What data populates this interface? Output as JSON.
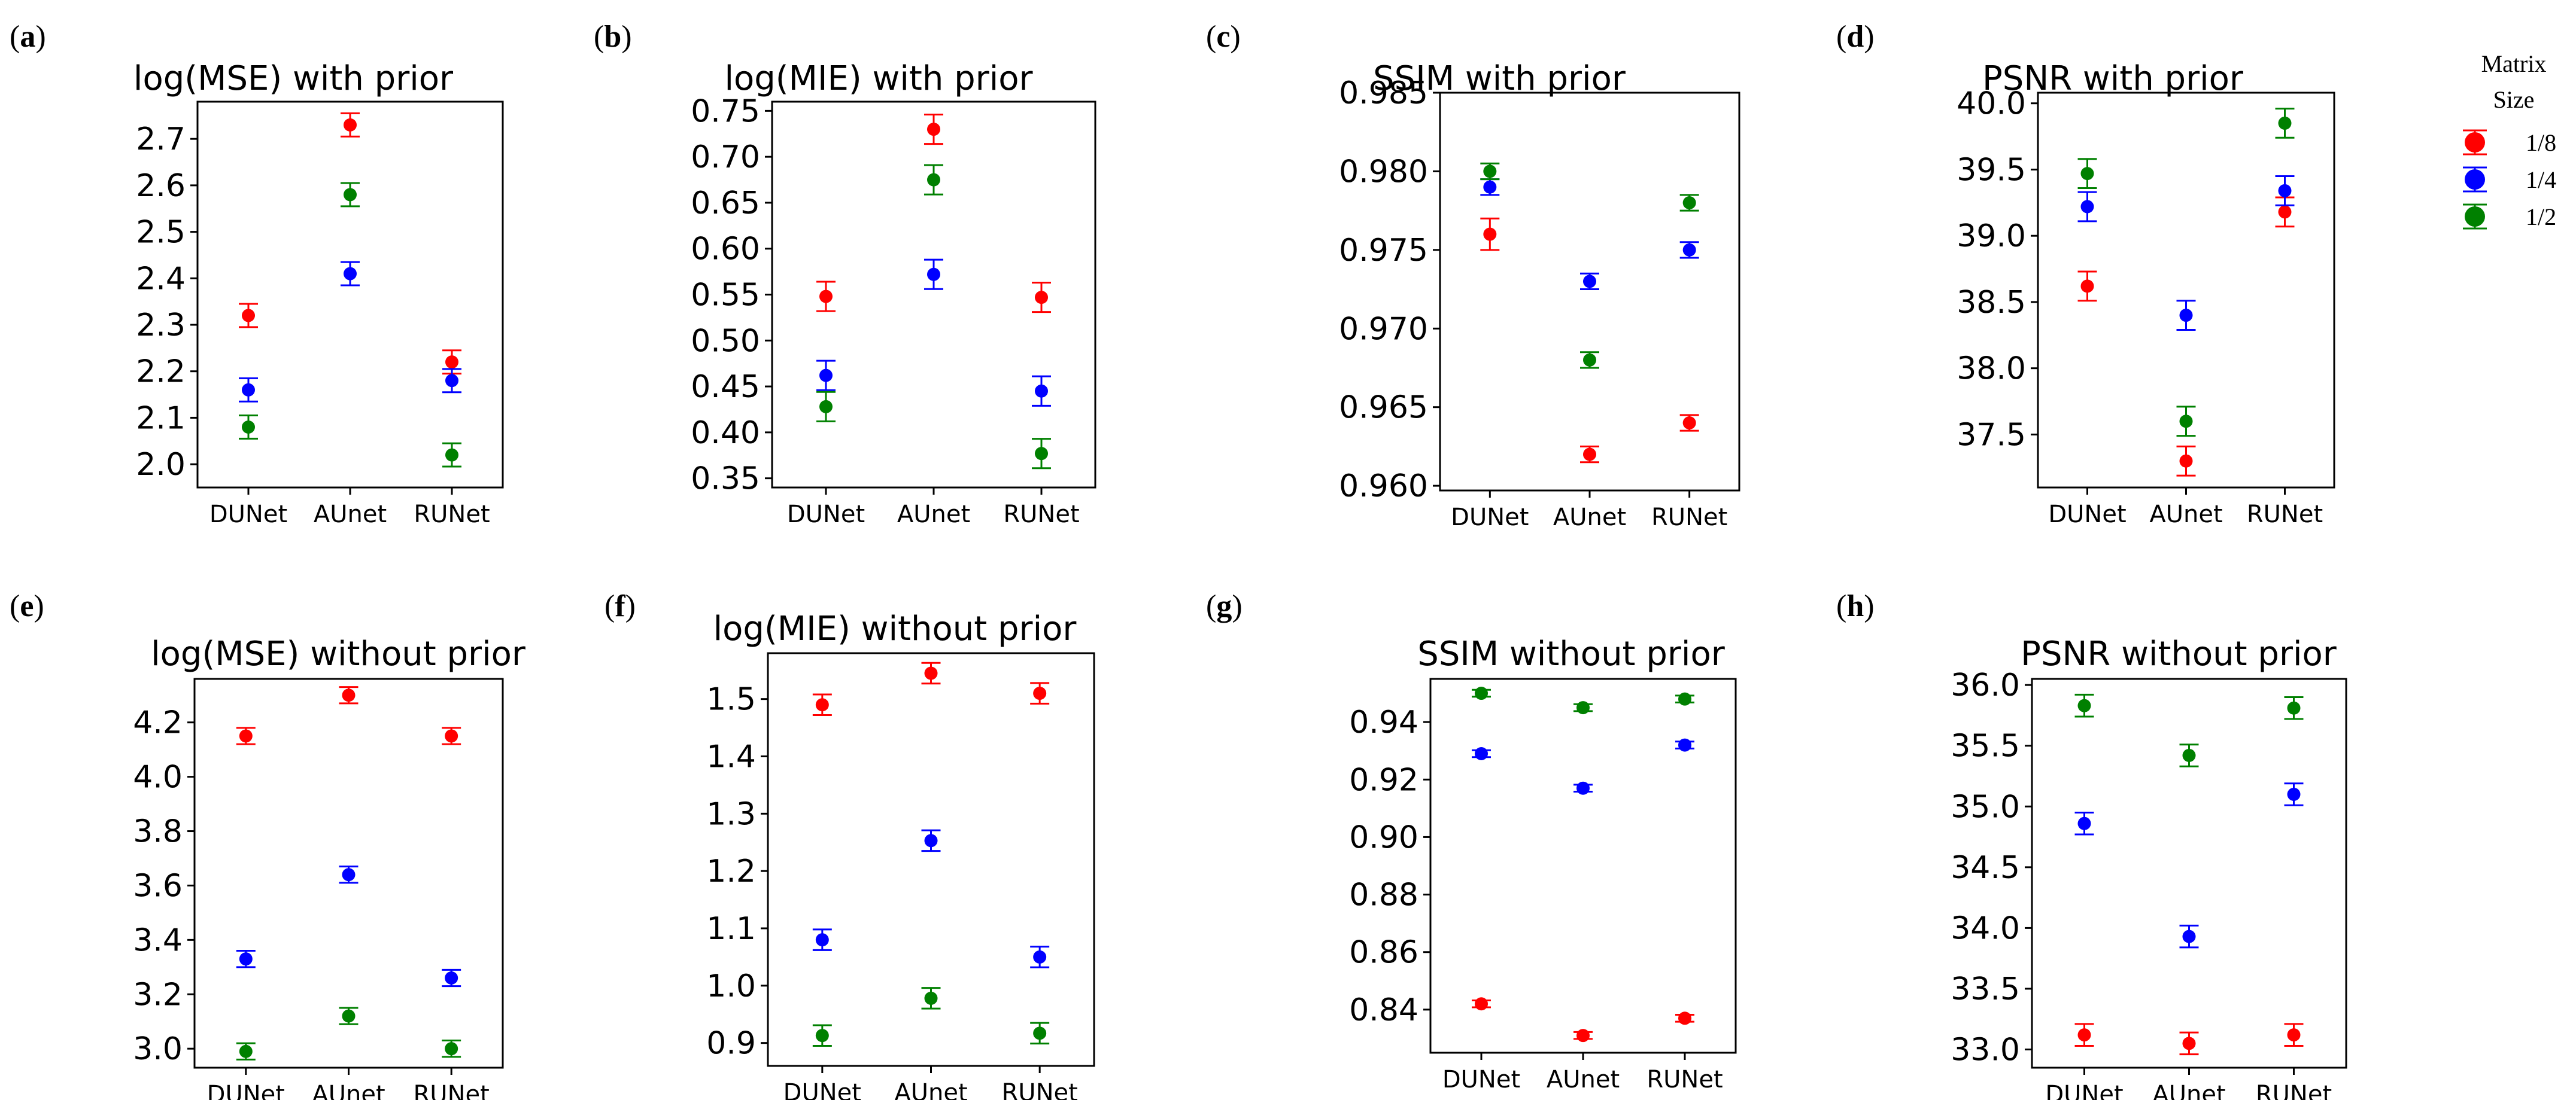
{
  "chart_data": [
    {
      "type": "scatter",
      "panel": "a",
      "title": "log(MSE) with prior",
      "categories": [
        "DUNet",
        "AUnet",
        "RUNet"
      ],
      "ylim": [
        1.95,
        2.78
      ],
      "yticks": [
        2.0,
        2.1,
        2.2,
        2.3,
        2.4,
        2.5,
        2.6,
        2.7
      ],
      "ytick_labels": [
        "2.0",
        "2.1",
        "2.2",
        "2.3",
        "2.4",
        "2.5",
        "2.6",
        "2.7"
      ],
      "series": [
        {
          "name": "1/8",
          "values": [
            2.32,
            2.73,
            2.22
          ],
          "errors": [
            0.025,
            0.025,
            0.025
          ]
        },
        {
          "name": "1/4",
          "values": [
            2.16,
            2.41,
            2.18
          ],
          "errors": [
            0.025,
            0.025,
            0.025
          ]
        },
        {
          "name": "1/2",
          "values": [
            2.08,
            2.58,
            2.02
          ],
          "errors": [
            0.025,
            0.025,
            0.025
          ]
        }
      ]
    },
    {
      "type": "scatter",
      "panel": "b",
      "title": "log(MIE) with prior",
      "categories": [
        "DUNet",
        "AUnet",
        "RUNet"
      ],
      "ylim": [
        0.34,
        0.76
      ],
      "yticks": [
        0.35,
        0.4,
        0.45,
        0.5,
        0.55,
        0.6,
        0.65,
        0.7,
        0.75
      ],
      "ytick_labels": [
        "0.35",
        "0.40",
        "0.45",
        "0.50",
        "0.55",
        "0.60",
        "0.65",
        "0.70",
        "0.75"
      ],
      "series": [
        {
          "name": "1/8",
          "values": [
            0.548,
            0.73,
            0.547
          ],
          "errors": [
            0.016,
            0.016,
            0.016
          ]
        },
        {
          "name": "1/4",
          "values": [
            0.462,
            0.572,
            0.445
          ],
          "errors": [
            0.016,
            0.016,
            0.016
          ]
        },
        {
          "name": "1/2",
          "values": [
            0.428,
            0.675,
            0.377
          ],
          "errors": [
            0.016,
            0.016,
            0.016
          ]
        }
      ]
    },
    {
      "type": "scatter",
      "panel": "c",
      "title": "SSIM with prior",
      "categories": [
        "DUNet",
        "AUnet",
        "RUNet"
      ],
      "ylim": [
        0.9597,
        0.985
      ],
      "yticks": [
        0.96,
        0.965,
        0.97,
        0.975,
        0.98,
        0.985
      ],
      "ytick_labels": [
        "0.960",
        "0.965",
        "0.970",
        "0.975",
        "0.980",
        "0.985"
      ],
      "series": [
        {
          "name": "1/8",
          "values": [
            0.976,
            0.962,
            0.964
          ],
          "errors": [
            0.001,
            0.0005,
            0.0005
          ]
        },
        {
          "name": "1/4",
          "values": [
            0.979,
            0.973,
            0.975
          ],
          "errors": [
            0.0005,
            0.0005,
            0.0005
          ]
        },
        {
          "name": "1/2",
          "values": [
            0.98,
            0.968,
            0.978
          ],
          "errors": [
            0.0005,
            0.0005,
            0.0005
          ]
        }
      ]
    },
    {
      "type": "scatter",
      "panel": "d",
      "title": "PSNR with prior",
      "categories": [
        "DUNet",
        "AUnet",
        "RUNet"
      ],
      "ylim": [
        37.1,
        40.08
      ],
      "yticks": [
        37.5,
        38.0,
        38.5,
        39.0,
        39.5,
        40.0
      ],
      "ytick_labels": [
        "37.5",
        "38.0",
        "38.5",
        "39.0",
        "39.5",
        "40.0"
      ],
      "series": [
        {
          "name": "1/8",
          "values": [
            38.62,
            37.3,
            39.18
          ],
          "errors": [
            0.11,
            0.11,
            0.11
          ]
        },
        {
          "name": "1/4",
          "values": [
            39.22,
            38.4,
            39.34
          ],
          "errors": [
            0.11,
            0.11,
            0.11
          ]
        },
        {
          "name": "1/2",
          "values": [
            39.47,
            37.6,
            39.85
          ],
          "errors": [
            0.11,
            0.11,
            0.11
          ]
        }
      ]
    },
    {
      "type": "scatter",
      "panel": "e",
      "title": "log(MSE) without prior",
      "categories": [
        "DUNet",
        "AUnet",
        "RUNet"
      ],
      "ylim": [
        2.93,
        4.36
      ],
      "yticks": [
        3.0,
        3.2,
        3.4,
        3.6,
        3.8,
        4.0,
        4.2
      ],
      "ytick_labels": [
        "3.0",
        "3.2",
        "3.4",
        "3.6",
        "3.8",
        "4.0",
        "4.2"
      ],
      "series": [
        {
          "name": "1/8",
          "values": [
            4.15,
            4.3,
            4.15
          ],
          "errors": [
            0.03,
            0.03,
            0.03
          ]
        },
        {
          "name": "1/4",
          "values": [
            3.33,
            3.64,
            3.26
          ],
          "errors": [
            0.03,
            0.03,
            0.03
          ]
        },
        {
          "name": "1/2",
          "values": [
            2.99,
            3.12,
            3.0
          ],
          "errors": [
            0.03,
            0.03,
            0.03
          ]
        }
      ]
    },
    {
      "type": "scatter",
      "panel": "f",
      "title": "log(MIE) without prior",
      "categories": [
        "DUNet",
        "AUnet",
        "RUNet"
      ],
      "ylim": [
        0.86,
        1.58
      ],
      "yticks": [
        0.9,
        1.0,
        1.1,
        1.2,
        1.3,
        1.4,
        1.5
      ],
      "ytick_labels": [
        "0.9",
        "1.0",
        "1.1",
        "1.2",
        "1.3",
        "1.4",
        "1.5"
      ],
      "series": [
        {
          "name": "1/8",
          "values": [
            1.49,
            1.545,
            1.51
          ],
          "errors": [
            0.018,
            0.018,
            0.018
          ]
        },
        {
          "name": "1/4",
          "values": [
            1.08,
            1.253,
            1.05
          ],
          "errors": [
            0.018,
            0.018,
            0.018
          ]
        },
        {
          "name": "1/2",
          "values": [
            0.913,
            0.978,
            0.917
          ],
          "errors": [
            0.018,
            0.018,
            0.018
          ]
        }
      ]
    },
    {
      "type": "scatter",
      "panel": "g",
      "title": "SSIM without prior",
      "categories": [
        "DUNet",
        "AUnet",
        "RUNet"
      ],
      "ylim": [
        0.825,
        0.955
      ],
      "yticks": [
        0.84,
        0.86,
        0.88,
        0.9,
        0.92,
        0.94
      ],
      "ytick_labels": [
        "0.84",
        "0.86",
        "0.88",
        "0.90",
        "0.92",
        "0.94"
      ],
      "series": [
        {
          "name": "1/8",
          "values": [
            0.842,
            0.831,
            0.837
          ],
          "errors": [
            0.0012,
            0.0012,
            0.0012
          ]
        },
        {
          "name": "1/4",
          "values": [
            0.929,
            0.917,
            0.932
          ],
          "errors": [
            0.0012,
            0.0012,
            0.0012
          ]
        },
        {
          "name": "1/2",
          "values": [
            0.95,
            0.945,
            0.948
          ],
          "errors": [
            0.0012,
            0.0012,
            0.0012
          ]
        }
      ]
    },
    {
      "type": "scatter",
      "panel": "h",
      "title": "PSNR without prior",
      "categories": [
        "DUNet",
        "AUnet",
        "RUNet"
      ],
      "ylim": [
        32.85,
        36.05
      ],
      "yticks": [
        33.0,
        33.5,
        34.0,
        34.5,
        35.0,
        35.5,
        36.0
      ],
      "ytick_labels": [
        "33.0",
        "33.5",
        "34.0",
        "34.5",
        "35.0",
        "35.5",
        "36.0"
      ],
      "series": [
        {
          "name": "1/8",
          "values": [
            33.12,
            33.05,
            33.12
          ],
          "errors": [
            0.09,
            0.09,
            0.09
          ]
        },
        {
          "name": "1/4",
          "values": [
            34.86,
            33.93,
            35.1
          ],
          "errors": [
            0.09,
            0.09,
            0.09
          ]
        },
        {
          "name": "1/2",
          "values": [
            35.83,
            35.42,
            35.81
          ],
          "errors": [
            0.09,
            0.09,
            0.09
          ]
        }
      ]
    }
  ],
  "legend": {
    "title_line1": "Matrix",
    "title_line2": "Size",
    "entries": [
      {
        "label": "1/8",
        "color": "#ff0000"
      },
      {
        "label": "1/4",
        "color": "#0000ff"
      },
      {
        "label": "1/2",
        "color": "#008000"
      }
    ]
  },
  "series_colors": {
    "1/8": "#ff0000",
    "1/4": "#0000ff",
    "1/2": "#008000"
  }
}
